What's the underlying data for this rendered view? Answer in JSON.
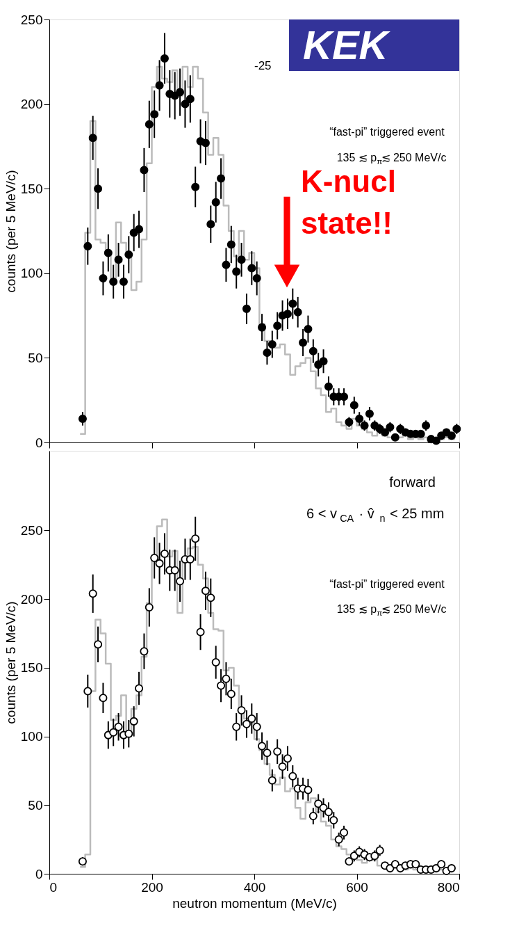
{
  "chart_data": [
    {
      "type": "scatter",
      "ylabel": "counts (per 5 MeV/c)",
      "xlim": [
        0,
        800
      ],
      "xticks": [
        0,
        200,
        400,
        600,
        800
      ],
      "ylim": [
        0,
        250
      ],
      "yticks": [
        0,
        50,
        100,
        150,
        200,
        250
      ],
      "tick_labels": "y",
      "grid": false,
      "line_style": "solid",
      "annotations": [
        "-25",
        "“fast-pi” triggered event",
        "135 ≲ p$_{π}$≲ 250 MeV/c",
        "KEK",
        "K-nucl state!!"
      ],
      "series": [
        {
          "marker": "circle",
          "color": "#000000",
          "x": [
            65,
            75,
            85,
            95,
            105,
            115,
            125,
            135,
            145,
            155,
            165,
            175,
            185,
            195,
            205,
            215,
            225,
            235,
            245,
            255,
            265,
            275,
            285,
            295,
            305,
            315,
            325,
            335,
            345,
            355,
            365,
            375,
            385,
            395,
            405,
            415,
            425,
            435,
            445,
            455,
            465,
            475,
            485,
            495,
            505,
            515,
            525,
            535,
            545,
            555,
            565,
            575,
            585,
            595,
            605,
            615,
            625,
            635,
            645,
            655,
            665,
            675,
            685,
            695,
            705,
            715,
            725,
            735,
            745,
            755,
            765,
            775,
            785,
            795
          ],
          "values": [
            14,
            116,
            180,
            150,
            97,
            112,
            95,
            108,
            95,
            111,
            124,
            126,
            161,
            188,
            194,
            211,
            227,
            206,
            205,
            207,
            200,
            203,
            151,
            178,
            177,
            129,
            142,
            156,
            105,
            117,
            101,
            108,
            79,
            103,
            97,
            68,
            53,
            58,
            69,
            75,
            76,
            82,
            77,
            59,
            67,
            54,
            46,
            48,
            33,
            27,
            27,
            27,
            12,
            22,
            14,
            10,
            17,
            10,
            8,
            6,
            9,
            3,
            8,
            6,
            5,
            5,
            5,
            10,
            2,
            1,
            4,
            6,
            4,
            8
          ],
          "errors": [
            4,
            11,
            13,
            12,
            10,
            11,
            10,
            10,
            10,
            11,
            11,
            11,
            13,
            14,
            14,
            15,
            15,
            14,
            14,
            14,
            14,
            14,
            12,
            13,
            13,
            11,
            12,
            12,
            10,
            11,
            10,
            10,
            9,
            10,
            10,
            8,
            7,
            8,
            8,
            9,
            9,
            9,
            9,
            8,
            8,
            7,
            7,
            7,
            6,
            5,
            5,
            5,
            3,
            5,
            4,
            3,
            4,
            3,
            3,
            2,
            3,
            2,
            3,
            2,
            2,
            2,
            2,
            3,
            1,
            1,
            2,
            2,
            2,
            3
          ]
        },
        {
          "type": "step",
          "marker": "none",
          "color": "#bbbbbb",
          "x": [
            60,
            70,
            80,
            90,
            100,
            110,
            120,
            130,
            140,
            150,
            160,
            170,
            180,
            190,
            200,
            210,
            220,
            230,
            240,
            250,
            260,
            270,
            280,
            290,
            300,
            310,
            320,
            330,
            340,
            350,
            360,
            370,
            380,
            390,
            400,
            410,
            420,
            430,
            440,
            450,
            460,
            470,
            480,
            490,
            500,
            510,
            520,
            530,
            540,
            550,
            560,
            570,
            580,
            590,
            600,
            610,
            620,
            630,
            640,
            650,
            660,
            670,
            680,
            690,
            700,
            710,
            720,
            730,
            740,
            750,
            760,
            770,
            780,
            790
          ],
          "values": [
            5,
            124,
            190,
            120,
            118,
            112,
            95,
            130,
            118,
            112,
            90,
            95,
            120,
            165,
            210,
            222,
            215,
            213,
            220,
            205,
            222,
            210,
            222,
            215,
            195,
            170,
            180,
            170,
            140,
            125,
            110,
            125,
            108,
            112,
            103,
            70,
            60,
            58,
            56,
            58,
            52,
            40,
            45,
            47,
            50,
            42,
            32,
            28,
            18,
            20,
            12,
            10,
            8,
            14,
            10,
            8,
            6,
            4,
            6,
            4,
            3,
            2,
            3,
            4,
            2,
            3,
            2,
            3,
            2,
            1,
            2,
            3,
            2,
            3
          ]
        }
      ]
    },
    {
      "type": "scatter",
      "ylabel": "counts (per 5 MeV/c)",
      "xlabel": "neutron momentum (MeV/c)",
      "xlim": [
        0,
        800
      ],
      "xticks": [
        0,
        200,
        400,
        600,
        800
      ],
      "ylim": [
        0,
        308
      ],
      "yticks": [
        0,
        50,
        100,
        150,
        200,
        250
      ],
      "grid": false,
      "line_style": "solid",
      "annotations": [
        "forward",
        "6 < v$_{CA}$ · v̂$_{n}$ < 25 mm",
        "“fast-pi” triggered event",
        "135 ≲ p$_{π}$≲ 250 MeV/c"
      ],
      "series": [
        {
          "marker": "circle",
          "color": "#000000",
          "x": [
            65,
            75,
            85,
            95,
            105,
            115,
            125,
            135,
            145,
            155,
            165,
            175,
            185,
            195,
            205,
            215,
            225,
            235,
            245,
            255,
            265,
            275,
            285,
            295,
            305,
            315,
            325,
            335,
            345,
            355,
            365,
            375,
            385,
            395,
            405,
            415,
            425,
            435,
            445,
            455,
            465,
            475,
            485,
            495,
            505,
            515,
            525,
            535,
            545,
            555,
            565,
            575,
            585,
            595,
            605,
            615,
            625,
            635,
            645,
            655,
            665,
            675,
            685,
            695,
            705,
            715,
            725,
            735,
            745,
            755,
            765,
            775,
            785
          ],
          "values": [
            9,
            133,
            204,
            167,
            128,
            101,
            103,
            107,
            101,
            102,
            111,
            135,
            162,
            194,
            230,
            226,
            233,
            221,
            221,
            213,
            229,
            229,
            244,
            176,
            206,
            201,
            154,
            137,
            142,
            131,
            107,
            119,
            109,
            113,
            107,
            93,
            88,
            68,
            89,
            78,
            84,
            71,
            62,
            62,
            61,
            42,
            51,
            48,
            45,
            39,
            25,
            30,
            9,
            13,
            16,
            14,
            12,
            13,
            17,
            6,
            4,
            7,
            4,
            6,
            7,
            7,
            3,
            3,
            3,
            4,
            7,
            2,
            4
          ],
          "errors": [
            3,
            12,
            14,
            13,
            11,
            10,
            10,
            10,
            10,
            10,
            11,
            12,
            13,
            14,
            15,
            15,
            15,
            15,
            15,
            15,
            15,
            15,
            16,
            13,
            14,
            14,
            12,
            12,
            12,
            11,
            10,
            11,
            10,
            11,
            10,
            10,
            9,
            8,
            9,
            9,
            9,
            8,
            8,
            8,
            8,
            6,
            7,
            7,
            7,
            6,
            5,
            5,
            3,
            4,
            4,
            4,
            3,
            4,
            4,
            2,
            2,
            3,
            2,
            2,
            3,
            3,
            2,
            2,
            2,
            2,
            3,
            1,
            2
          ]
        },
        {
          "type": "step",
          "marker": "none",
          "color": "#bbbbbb",
          "x": [
            60,
            70,
            80,
            90,
            100,
            110,
            120,
            130,
            140,
            150,
            160,
            170,
            180,
            190,
            200,
            210,
            220,
            230,
            240,
            250,
            260,
            270,
            280,
            290,
            300,
            310,
            320,
            330,
            340,
            350,
            360,
            370,
            380,
            390,
            400,
            410,
            420,
            430,
            440,
            450,
            460,
            470,
            480,
            490,
            500,
            510,
            520,
            530,
            540,
            550,
            560,
            570,
            580,
            590,
            600,
            610,
            620,
            630,
            640,
            650,
            660,
            670,
            680,
            690,
            700,
            710,
            720,
            730,
            740,
            750,
            760,
            770,
            780,
            790
          ],
          "values": [
            5,
            14,
            133,
            185,
            175,
            153,
            112,
            115,
            130,
            100,
            120,
            130,
            158,
            197,
            228,
            253,
            258,
            231,
            235,
            190,
            230,
            237,
            238,
            225,
            215,
            190,
            178,
            177,
            148,
            150,
            137,
            120,
            113,
            110,
            98,
            90,
            80,
            72,
            65,
            70,
            60,
            62,
            48,
            40,
            52,
            55,
            45,
            38,
            35,
            25,
            20,
            18,
            14,
            12,
            10,
            8,
            12,
            10,
            6,
            8,
            5,
            4,
            4,
            3,
            4,
            3,
            3,
            2,
            3,
            2,
            3,
            2,
            4,
            3
          ]
        }
      ]
    }
  ]
}
